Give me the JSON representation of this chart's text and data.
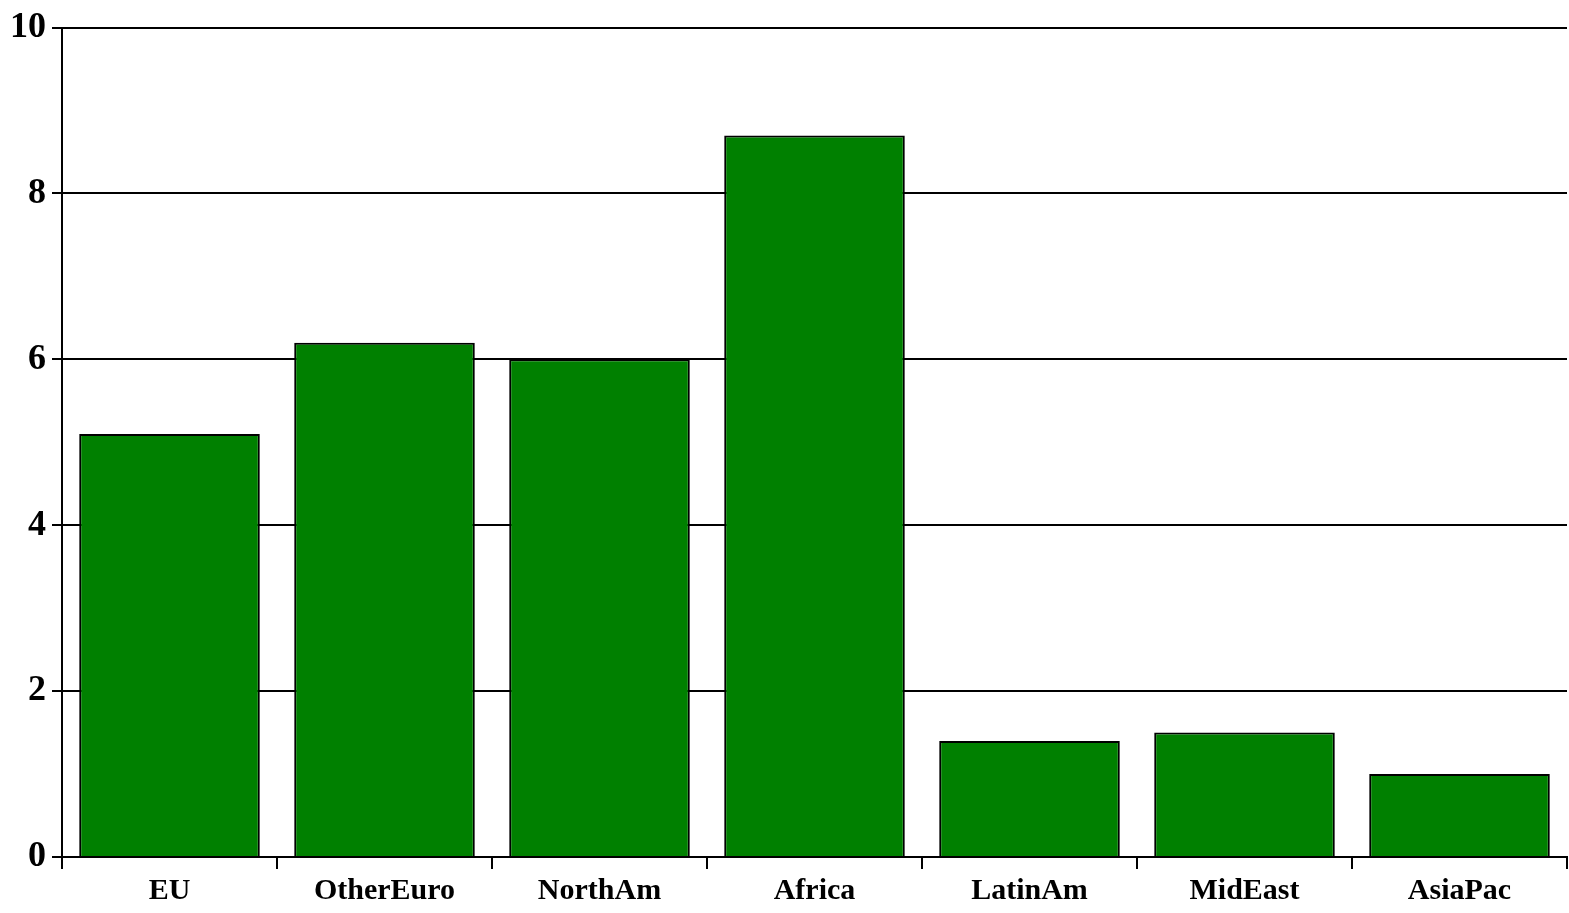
{
  "chart_data": {
    "type": "bar",
    "categories": [
      "EU",
      "OtherEuro",
      "NorthAm",
      "Africa",
      "LatinAm",
      "MidEast",
      "AsiaPac"
    ],
    "values": [
      5.1,
      6.2,
      6.0,
      8.7,
      1.4,
      1.5,
      1.0
    ],
    "color": "#008000",
    "ylim": [
      0,
      10
    ],
    "yticks": [
      0,
      2,
      4,
      6,
      8,
      10
    ],
    "grid": "y",
    "legend": false
  }
}
